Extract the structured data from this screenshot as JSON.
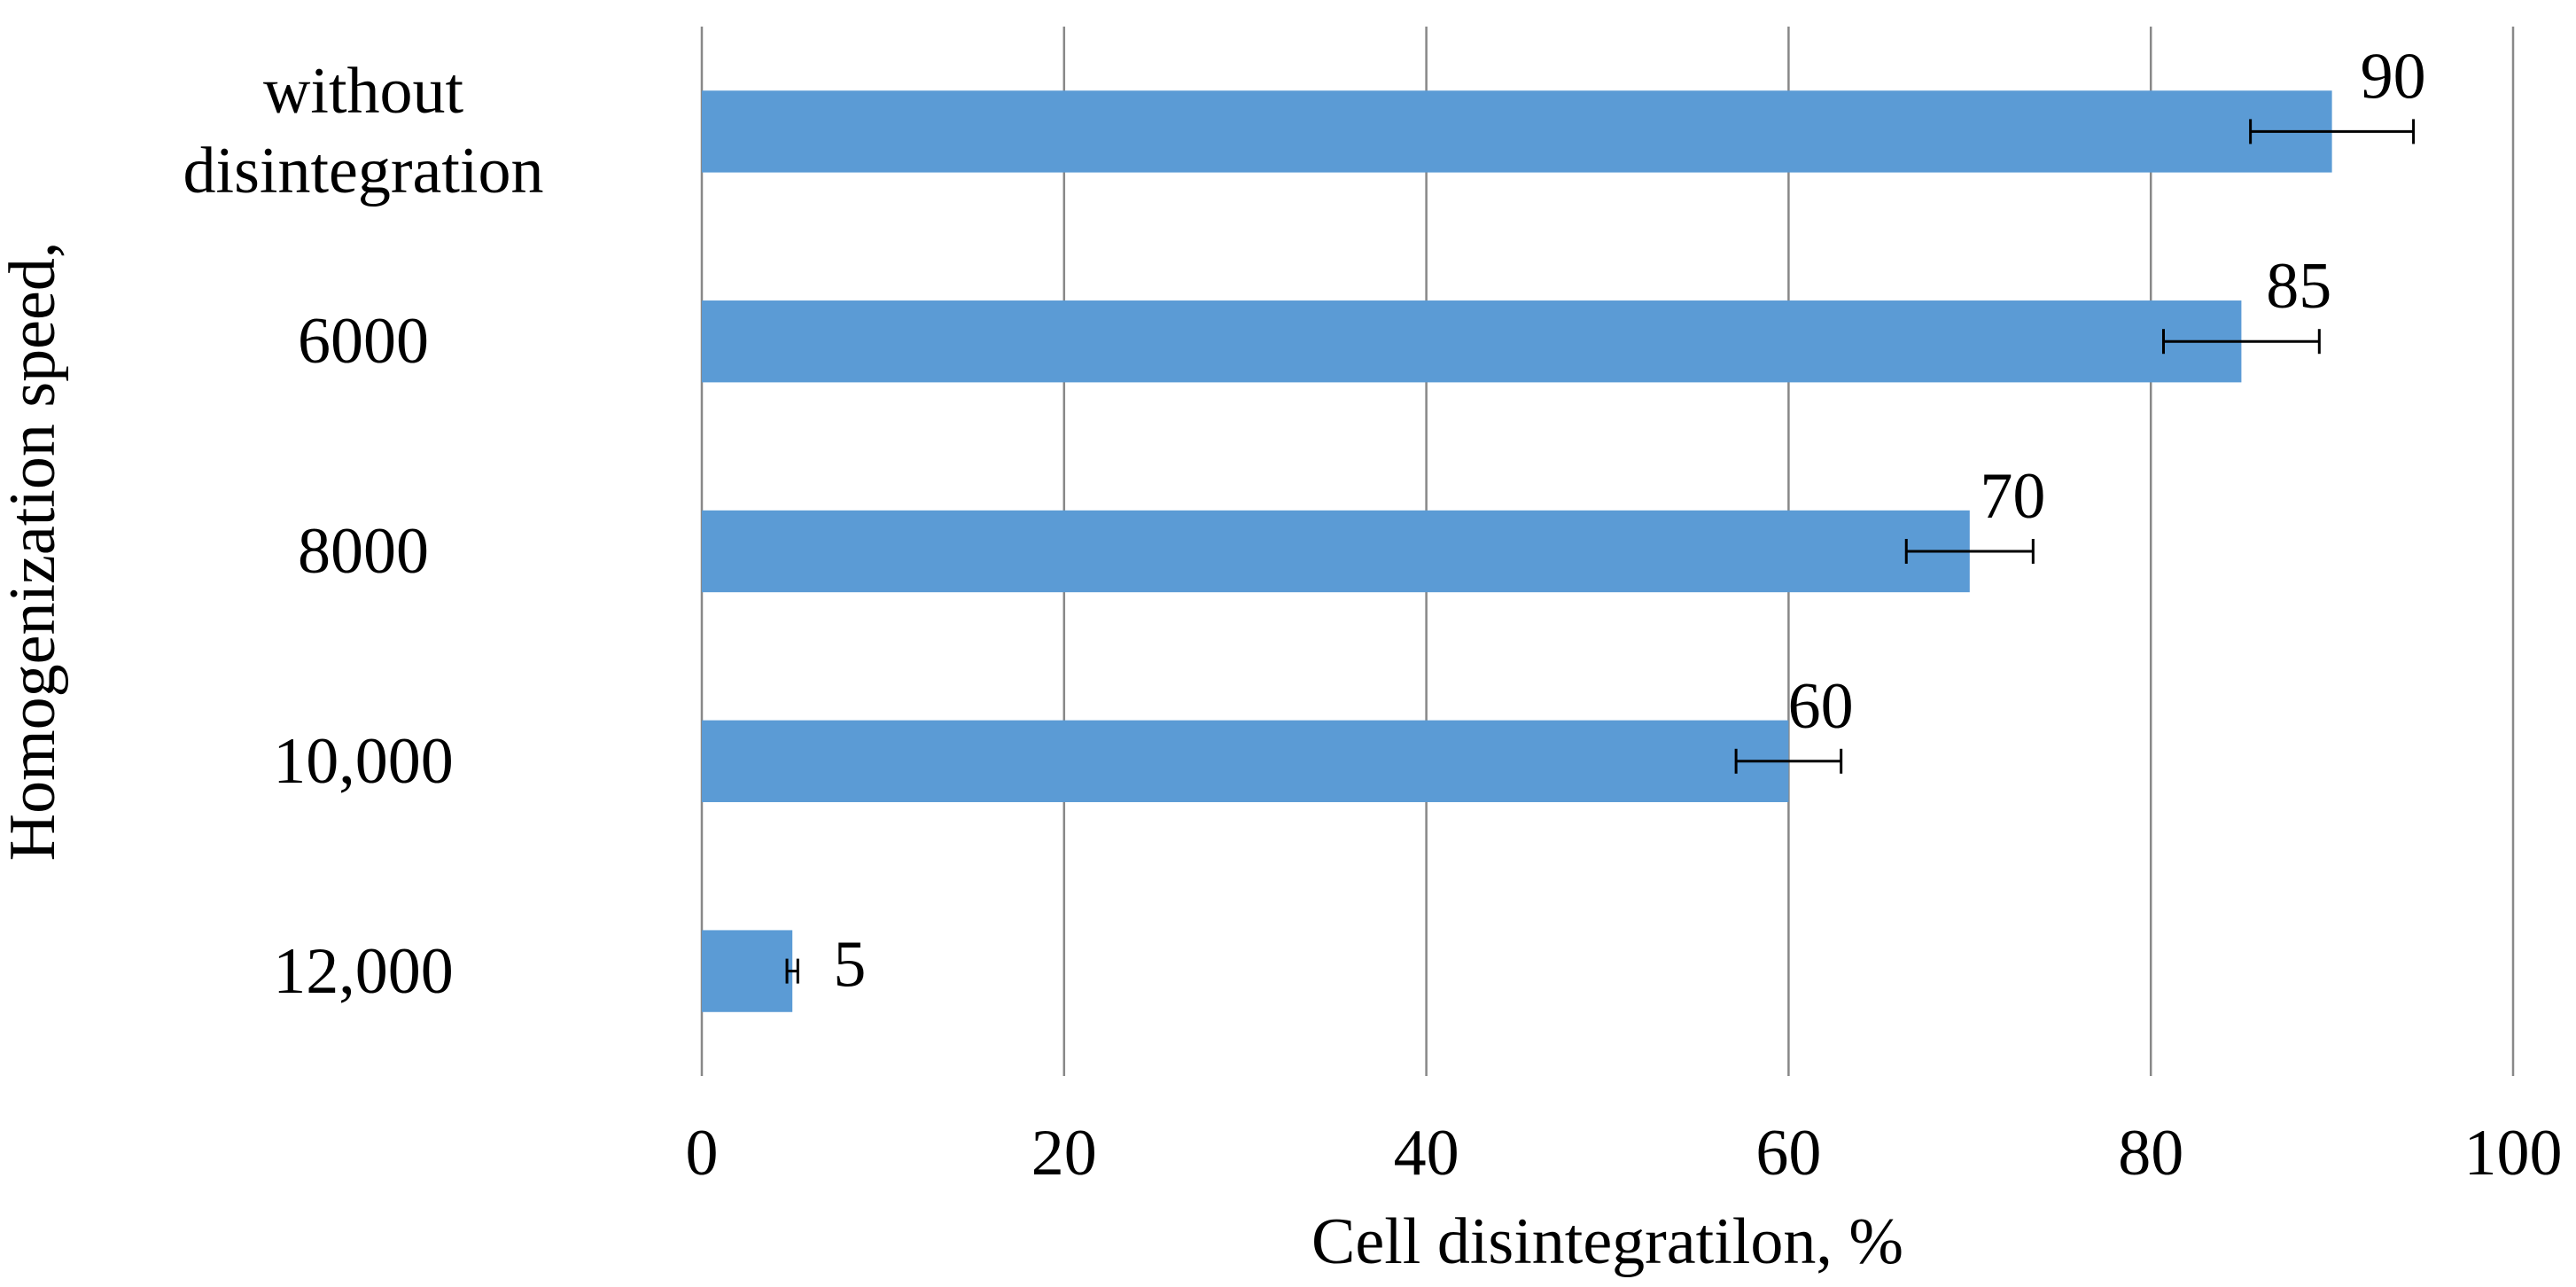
{
  "chart_data": {
    "type": "bar",
    "orientation": "horizontal",
    "x_label": "Cell disintegratilon, %",
    "y_label": "Homogenization speed,",
    "categories": [
      "without disintegration",
      "6000",
      "8000",
      "10,000",
      "12,000"
    ],
    "values": [
      90,
      85,
      70,
      60,
      5
    ],
    "errors": [
      4.5,
      4.3,
      3.5,
      2.9,
      0.3
    ],
    "color": "#5b9bd5",
    "xlim": [
      0,
      100
    ],
    "xticks": [
      0,
      20,
      40,
      60,
      80,
      100
    ],
    "grid": true
  }
}
